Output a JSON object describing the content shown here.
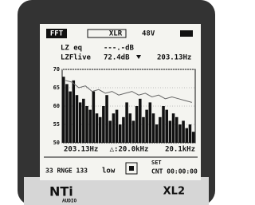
{
  "header": {
    "mode": "FFT",
    "input": "XLR",
    "phantom": "48V"
  },
  "readings": [
    {
      "label": "LZ eq",
      "value": "---.-dB"
    },
    {
      "label": "LZFlive",
      "value": "72.4dB",
      "freq": "203.13Hz"
    }
  ],
  "chart_data": {
    "type": "bar",
    "ylim": [
      50,
      70
    ],
    "yticks": [
      70,
      65,
      60,
      55,
      50
    ],
    "grid": true,
    "x_labels": [
      "203.13Hz",
      "△:20.0kHz",
      "20.1kHz"
    ],
    "series": [
      {
        "color": "#111111",
        "values": [
          68,
          66,
          64,
          67,
          63,
          61,
          62,
          60,
          59,
          64,
          58,
          57,
          60,
          63,
          56,
          58,
          59,
          55,
          57,
          61,
          58,
          56,
          60,
          62,
          57,
          59,
          61,
          58,
          55,
          57,
          60,
          59,
          56,
          58,
          57,
          55,
          56,
          54,
          55,
          53
        ]
      },
      {
        "type": "line",
        "color": "#666666",
        "values": [
          67,
          66.5,
          65,
          65.5,
          64,
          64.5,
          63.5,
          64,
          63,
          63.5,
          64,
          63,
          63.5,
          62.5,
          63,
          62,
          62.5,
          62,
          61.5,
          61
        ]
      }
    ]
  },
  "footer": {
    "range": "33 RNGE 133",
    "gain": "low",
    "set": "SET",
    "counter": "CNT 00:00:00"
  },
  "brand": {
    "logo": "NTi",
    "sub": "AUDIO",
    "model": "XL2"
  }
}
